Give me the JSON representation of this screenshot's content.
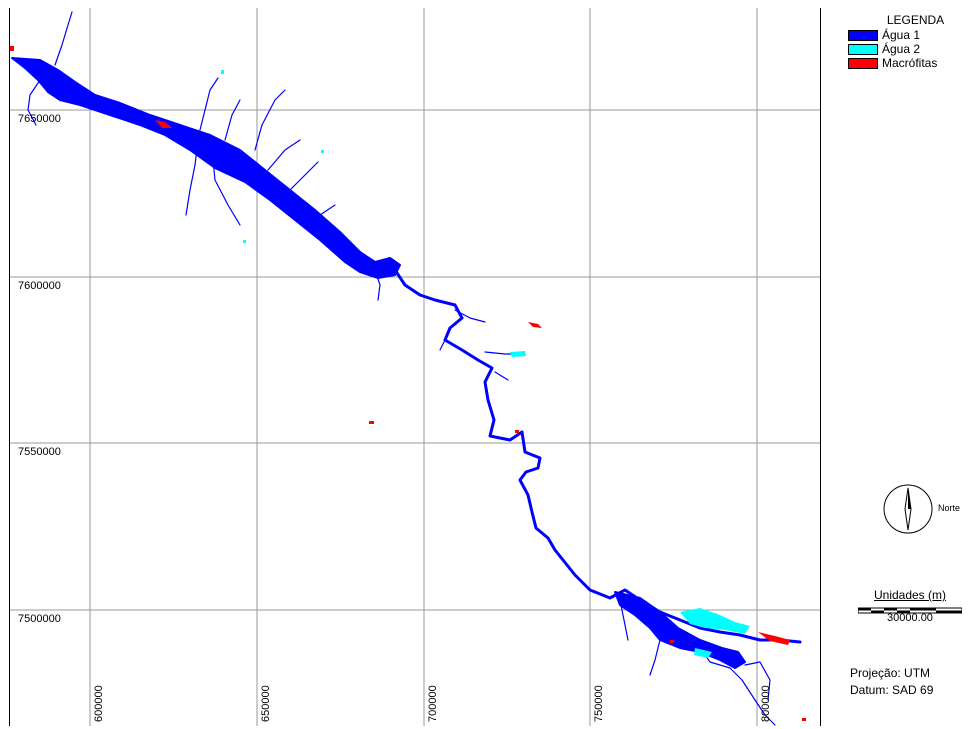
{
  "map": {
    "y_ticks": [
      {
        "label": "7650000"
      },
      {
        "label": "7600000"
      },
      {
        "label": "7550000"
      },
      {
        "label": "7500000"
      }
    ],
    "x_ticks": [
      {
        "label": "600000"
      },
      {
        "label": "650000"
      },
      {
        "label": "700000"
      },
      {
        "label": "750000"
      },
      {
        "label": "800000"
      }
    ]
  },
  "legend": {
    "title": "LEGENDA",
    "items": [
      {
        "label": "Água  1",
        "color": "#0000FF"
      },
      {
        "label": "Água  2",
        "color": "#00FFFF"
      },
      {
        "label": "Macrófitas",
        "color": "#FF0000"
      }
    ]
  },
  "north": {
    "label": "Norte",
    "icon": "north-arrow-icon"
  },
  "scale": {
    "title": "Unidades (m)",
    "value": "30000.00"
  },
  "projection": {
    "line1": "Projeção: UTM",
    "line2": "Datum: SAD 69"
  }
}
